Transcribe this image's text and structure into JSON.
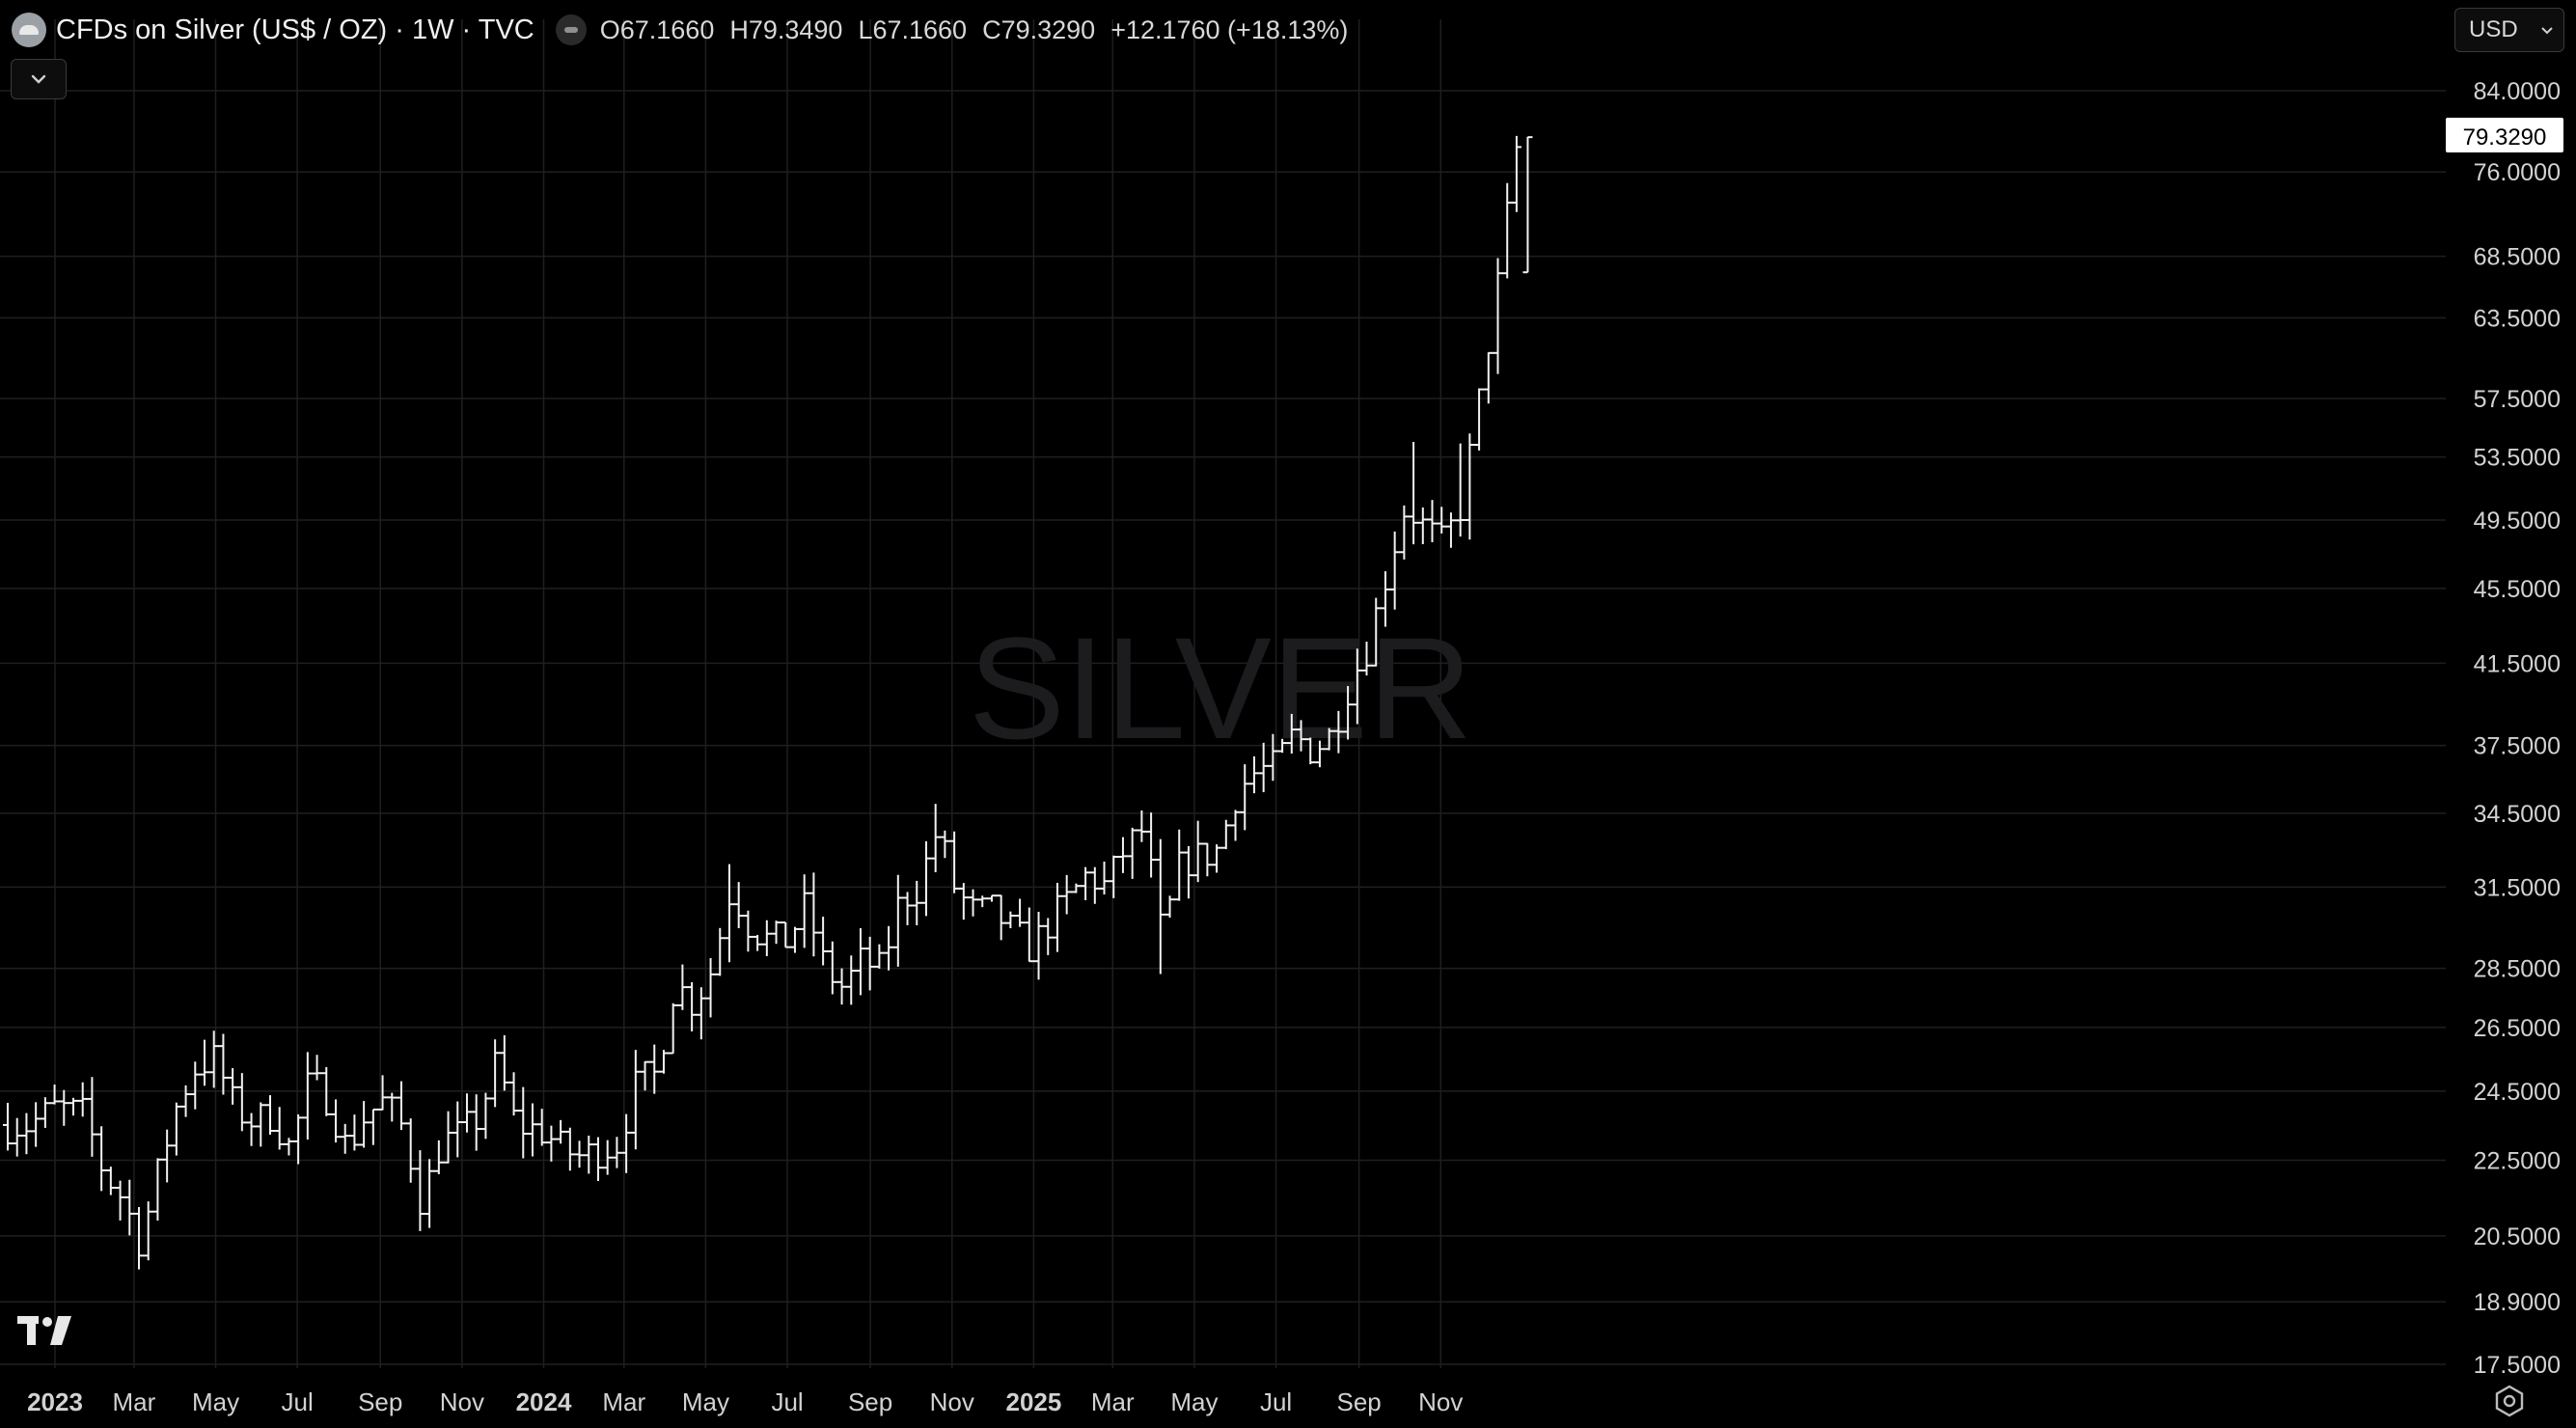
{
  "header": {
    "title": "CFDs on Silver (US$ / OZ) · 1W · TVC",
    "open": "O67.1660",
    "high": "H79.3490",
    "low": "L67.1660",
    "close": "C79.3290",
    "change": "+12.1760 (+18.13%)",
    "symbol_icon": "silver-symbol-icon",
    "status_icon": "market-status-icon"
  },
  "controls": {
    "currency": "USD",
    "collapse_icon": "chevron-down-icon",
    "settings_icon": "gear-icon",
    "logo": "tradingview-logo"
  },
  "colors": {
    "background": "#000000",
    "bars": "#f2f2f2",
    "grid": "#1f1f1f",
    "watermark": "#1c1c1e",
    "axis_text": "#d2d2d2",
    "last_price_bg": "#ffffff",
    "last_price_text": "#000000"
  },
  "chart_data": {
    "type": "ohlc",
    "watermark": "SILVER",
    "price_scale": "log",
    "x_axis_labels": [
      "2023",
      "Mar",
      "May",
      "Jul",
      "Sep",
      "Nov",
      "2024",
      "Mar",
      "May",
      "Jul",
      "Sep",
      "Nov",
      "2025",
      "Mar",
      "May",
      "Jul",
      "Sep",
      "Nov"
    ],
    "x_axis_bold": [
      "2023",
      "2024",
      "2025"
    ],
    "x_axis_dates": [
      "2023-01-01",
      "2023-03-01",
      "2023-05-01",
      "2023-07-01",
      "2023-09-01",
      "2023-11-01",
      "2024-01-01",
      "2024-03-01",
      "2024-05-01",
      "2024-07-01",
      "2024-09-01",
      "2024-11-01",
      "2025-01-01",
      "2025-03-01",
      "2025-05-01",
      "2025-07-01",
      "2025-09-01",
      "2025-11-01"
    ],
    "y_axis_labels": [
      "84.0000",
      "76.0000",
      "68.5000",
      "63.5000",
      "57.5000",
      "53.5000",
      "49.5000",
      "45.5000",
      "41.5000",
      "37.5000",
      "34.5000",
      "31.5000",
      "28.5000",
      "26.5000",
      "24.5000",
      "22.5000",
      "20.5000",
      "18.9000",
      "17.5000"
    ],
    "last_price": "79.3290",
    "grid": true,
    "anchors": [
      [
        "2022-12-12",
        23.5
      ],
      [
        "2023-01-02",
        24.0
      ],
      [
        "2023-01-23",
        23.8
      ],
      [
        "2023-02-06",
        22.2
      ],
      [
        "2023-02-20",
        21.5
      ],
      [
        "2023-03-06",
        20.3
      ],
      [
        "2023-03-20",
        22.3
      ],
      [
        "2023-04-03",
        24.2
      ],
      [
        "2023-04-17",
        25.3
      ],
      [
        "2023-05-01",
        25.5
      ],
      [
        "2023-05-15",
        24.0
      ],
      [
        "2023-05-29",
        23.6
      ],
      [
        "2023-06-12",
        23.8
      ],
      [
        "2023-06-26",
        22.8
      ],
      [
        "2023-07-10",
        24.8
      ],
      [
        "2023-07-24",
        24.3
      ],
      [
        "2023-08-07",
        22.8
      ],
      [
        "2023-08-21",
        23.8
      ],
      [
        "2023-09-04",
        24.2
      ],
      [
        "2023-09-18",
        23.4
      ],
      [
        "2023-10-02",
        21.3
      ],
      [
        "2023-10-16",
        23.0
      ],
      [
        "2023-10-30",
        23.2
      ],
      [
        "2023-11-13",
        23.7
      ],
      [
        "2023-11-27",
        25.4
      ],
      [
        "2023-12-11",
        23.5
      ],
      [
        "2024-01-01",
        23.3
      ],
      [
        "2024-01-15",
        22.8
      ],
      [
        "2024-01-29",
        22.6
      ],
      [
        "2024-02-12",
        22.8
      ],
      [
        "2024-02-26",
        23.0
      ],
      [
        "2024-03-11",
        24.8
      ],
      [
        "2024-03-25",
        25.0
      ],
      [
        "2024-04-08",
        28.0
      ],
      [
        "2024-04-22",
        27.3
      ],
      [
        "2024-05-06",
        28.5
      ],
      [
        "2024-05-20",
        31.5
      ],
      [
        "2024-06-03",
        30.0
      ],
      [
        "2024-06-17",
        29.5
      ],
      [
        "2024-07-01",
        29.5
      ],
      [
        "2024-07-15",
        30.8
      ],
      [
        "2024-07-29",
        28.5
      ],
      [
        "2024-08-12",
        27.8
      ],
      [
        "2024-08-26",
        28.8
      ],
      [
        "2024-09-09",
        28.4
      ],
      [
        "2024-09-23",
        31.0
      ],
      [
        "2024-10-07",
        31.5
      ],
      [
        "2024-10-21",
        33.8
      ],
      [
        "2024-11-04",
        31.3
      ],
      [
        "2024-11-18",
        30.5
      ],
      [
        "2024-12-02",
        30.6
      ],
      [
        "2024-12-16",
        29.8
      ],
      [
        "2024-12-30",
        29.2
      ],
      [
        "2025-01-13",
        30.2
      ],
      [
        "2025-01-27",
        31.0
      ],
      [
        "2025-02-10",
        32.0
      ],
      [
        "2025-02-24",
        31.5
      ],
      [
        "2025-03-10",
        33.0
      ],
      [
        "2025-03-24",
        33.8
      ],
      [
        "2025-04-07",
        29.5
      ],
      [
        "2025-04-21",
        32.5
      ],
      [
        "2025-05-05",
        32.7
      ],
      [
        "2025-05-19",
        33.0
      ],
      [
        "2025-06-02",
        35.5
      ],
      [
        "2025-06-16",
        36.3
      ],
      [
        "2025-06-30",
        36.5
      ],
      [
        "2025-07-14",
        38.0
      ],
      [
        "2025-07-28",
        37.3
      ],
      [
        "2025-08-11",
        38.0
      ],
      [
        "2025-08-25",
        40.5
      ],
      [
        "2025-09-08",
        42.5
      ],
      [
        "2025-09-22",
        46.5
      ],
      [
        "2025-10-06",
        50.5
      ],
      [
        "2025-10-20",
        49.0
      ],
      [
        "2025-11-03",
        48.0
      ],
      [
        "2025-11-17",
        50.5
      ],
      [
        "2025-12-01",
        58.0
      ],
      [
        "2025-12-15",
        67.0
      ],
      [
        "2025-12-29",
        79.3
      ]
    ],
    "spikes": [
      [
        "2023-03-13",
        20.2
      ],
      [
        "2023-04-24",
        26.1
      ],
      [
        "2023-10-09",
        20.7
      ],
      [
        "2023-12-04",
        26.0
      ],
      [
        "2024-05-20",
        32.4
      ],
      [
        "2024-10-21",
        34.9
      ],
      [
        "2025-04-07",
        28.3
      ],
      [
        "2025-10-13",
        54.5
      ],
      [
        "2025-11-17",
        54.4
      ]
    ],
    "last_bar": {
      "date": "2026-01-05",
      "open": 67.166,
      "high": 79.349,
      "low": 67.166,
      "close": 79.329
    }
  }
}
